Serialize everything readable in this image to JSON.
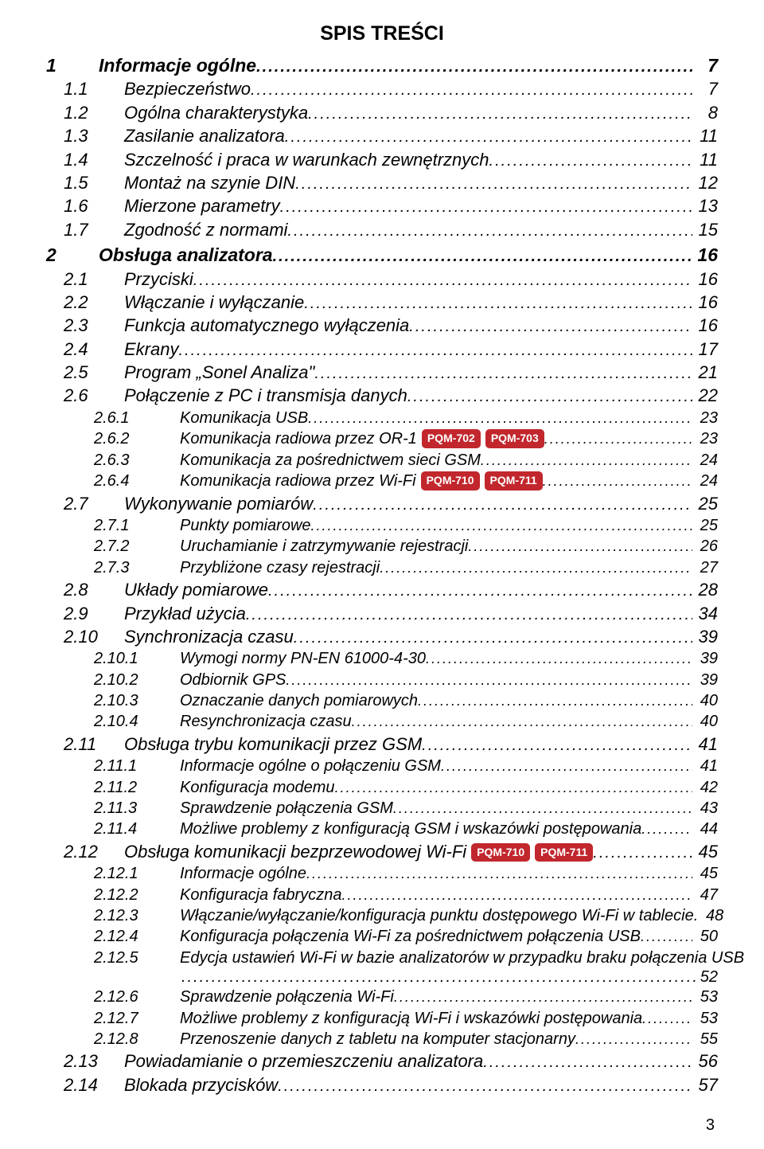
{
  "title": "SPIS TREŚCI",
  "page_number": "3",
  "colors": {
    "badge_bg": "#c1272d",
    "badge_text": "#ffffff",
    "text": "#000000",
    "bg": "#ffffff"
  },
  "fonts": {
    "title_size_pt": 19,
    "lvl0_size_pt": 17,
    "lvl1_size_pt": 16,
    "lvl2_size_pt": 15
  },
  "entries": [
    {
      "level": 0,
      "num": "1",
      "label": "Informacje ogólne",
      "page": "7"
    },
    {
      "level": 1,
      "num": "1.1",
      "label": "Bezpieczeństwo",
      "page": "7"
    },
    {
      "level": 1,
      "num": "1.2",
      "label": "Ogólna charakterystyka",
      "page": "8"
    },
    {
      "level": 1,
      "num": "1.3",
      "label": "Zasilanie analizatora",
      "page": "11"
    },
    {
      "level": 1,
      "num": "1.4",
      "label": "Szczelność i praca w warunkach zewnętrznych",
      "page": "11"
    },
    {
      "level": 1,
      "num": "1.5",
      "label": "Montaż na szynie DIN",
      "page": "12"
    },
    {
      "level": 1,
      "num": "1.6",
      "label": "Mierzone parametry",
      "page": "13"
    },
    {
      "level": 1,
      "num": "1.7",
      "label": "Zgodność z normami",
      "page": "15"
    },
    {
      "level": 0,
      "num": "2",
      "label": "Obsługa analizatora",
      "page": "16"
    },
    {
      "level": 1,
      "num": "2.1",
      "label": "Przyciski",
      "page": "16"
    },
    {
      "level": 1,
      "num": "2.2",
      "label": "Włączanie i wyłączanie",
      "page": "16"
    },
    {
      "level": 1,
      "num": "2.3",
      "label": "Funkcja automatycznego wyłączenia",
      "page": "16"
    },
    {
      "level": 1,
      "num": "2.4",
      "label": "Ekrany",
      "page": "17"
    },
    {
      "level": 1,
      "num": "2.5",
      "label": "Program „Sonel Analiza\"",
      "page": "21"
    },
    {
      "level": 1,
      "num": "2.6",
      "label": "Połączenie z PC i transmisja danych",
      "page": "22"
    },
    {
      "level": 2,
      "num": "2.6.1",
      "label": "Komunikacja USB",
      "page": "23"
    },
    {
      "level": 2,
      "num": "2.6.2",
      "label": "Komunikacja radiowa przez OR-1",
      "badges": [
        "PQM-702",
        "PQM-703"
      ],
      "page": "23"
    },
    {
      "level": 2,
      "num": "2.6.3",
      "label": "Komunikacja za pośrednictwem sieci GSM",
      "page": "24"
    },
    {
      "level": 2,
      "num": "2.6.4",
      "label": "Komunikacja radiowa przez Wi-Fi",
      "badges": [
        "PQM-710",
        "PQM-711"
      ],
      "page": "24"
    },
    {
      "level": 1,
      "num": "2.7",
      "label": "Wykonywanie pomiarów",
      "page": "25"
    },
    {
      "level": 2,
      "num": "2.7.1",
      "label": "Punkty pomiarowe",
      "page": "25"
    },
    {
      "level": 2,
      "num": "2.7.2",
      "label": "Uruchamianie i zatrzymywanie rejestracji",
      "page": "26"
    },
    {
      "level": 2,
      "num": "2.7.3",
      "label": "Przybliżone czasy rejestracji",
      "page": "27"
    },
    {
      "level": 1,
      "num": "2.8",
      "label": "Układy pomiarowe",
      "page": "28"
    },
    {
      "level": 1,
      "num": "2.9",
      "label": "Przykład użycia",
      "page": "34"
    },
    {
      "level": 1,
      "num": "2.10",
      "label": "Synchronizacja czasu",
      "page": "39"
    },
    {
      "level": 2,
      "num": "2.10.1",
      "label": "Wymogi normy PN-EN 61000-4-30",
      "page": "39"
    },
    {
      "level": 2,
      "num": "2.10.2",
      "label": "Odbiornik GPS",
      "page": "39"
    },
    {
      "level": 2,
      "num": "2.10.3",
      "label": "Oznaczanie danych pomiarowych",
      "page": "40"
    },
    {
      "level": 2,
      "num": "2.10.4",
      "label": "Resynchronizacja czasu",
      "page": "40"
    },
    {
      "level": 1,
      "num": "2.11",
      "label": "Obsługa trybu komunikacji przez GSM",
      "page": "41"
    },
    {
      "level": 2,
      "num": "2.11.1",
      "label": "Informacje ogólne o połączeniu GSM",
      "page": "41"
    },
    {
      "level": 2,
      "num": "2.11.2",
      "label": "Konfiguracja modemu",
      "page": "42"
    },
    {
      "level": 2,
      "num": "2.11.3",
      "label": "Sprawdzenie połączenia GSM",
      "page": "43"
    },
    {
      "level": 2,
      "num": "2.11.4",
      "label": "Możliwe problemy z konfiguracją GSM i wskazówki postępowania",
      "page": "44"
    },
    {
      "level": 1,
      "num": "2.12",
      "label": "Obsługa komunikacji bezprzewodowej Wi-Fi",
      "badges": [
        "PQM-710",
        "PQM-711"
      ],
      "page": "45"
    },
    {
      "level": 2,
      "num": "2.12.1",
      "label": "Informacje ogólne",
      "page": "45"
    },
    {
      "level": 2,
      "num": "2.12.2",
      "label": "Konfiguracja fabryczna",
      "page": "47"
    },
    {
      "level": 2,
      "num": "2.12.3",
      "label": "Włączanie/wyłączanie/konfiguracja punktu dostępowego Wi-Fi w tablecie.",
      "page": "48"
    },
    {
      "level": 2,
      "num": "2.12.4",
      "label": "Konfiguracja połączenia Wi-Fi za pośrednictwem połączenia USB",
      "page": "50"
    },
    {
      "level": 2,
      "num": "2.12.5",
      "label": "Edycja ustawień Wi-Fi w bazie analizatorów w przypadku braku połączenia USB",
      "wrap": true,
      "page": "52"
    },
    {
      "level": 2,
      "num": "2.12.6",
      "label": "Sprawdzenie połączenia Wi-Fi",
      "page": "53"
    },
    {
      "level": 2,
      "num": "2.12.7",
      "label": "Możliwe problemy z konfiguracją Wi-Fi i wskazówki postępowania",
      "page": "53"
    },
    {
      "level": 2,
      "num": "2.12.8",
      "label": "Przenoszenie danych z tabletu na komputer stacjonarny",
      "page": "55"
    },
    {
      "level": 1,
      "num": "2.13",
      "label": "Powiadamianie o przemieszczeniu analizatora",
      "page": "56"
    },
    {
      "level": 1,
      "num": "2.14",
      "label": "Blokada przycisków",
      "page": "57"
    }
  ]
}
